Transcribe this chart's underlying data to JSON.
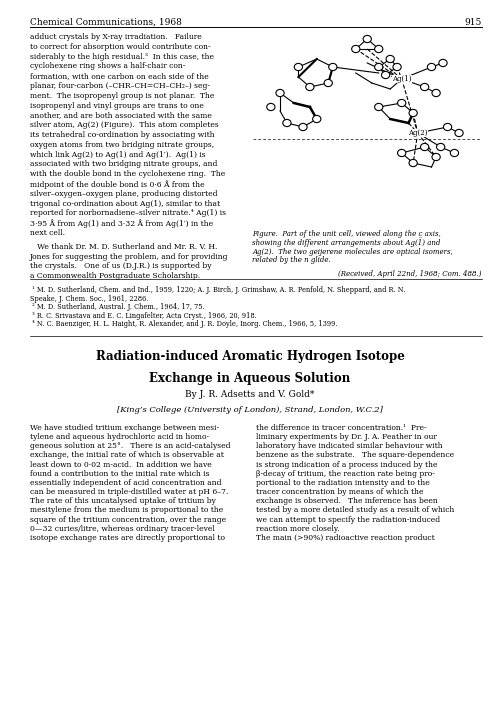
{
  "background_color": "#ffffff",
  "page_width": 5.0,
  "page_height": 7.22,
  "dpi": 100,
  "header_journal": "Chemical Communications, 1968",
  "header_page": "915",
  "top_left_text": [
    "adduct crystals by X-ray irradiation.   Failure",
    "to correct for absorption would contribute con-",
    "siderably to the high residual.³  In this case, the",
    "cyclohexene ring shows a half-chair con-",
    "formation, with one carbon on each side of the",
    "planar, four-carbon (–CHR–CH=CH–CH₂–) seg-",
    "ment.  The isopropenyl group is not planar.  The",
    "isopropenyl and vinyl groups are trans to one",
    "another, and are both associated with the same",
    "silver atom, Ag(2) (Figure).  This atom completes",
    "its tetrahedral co-ordination by associating with",
    "oxygen atoms from two bridging nitrate groups,",
    "which link Ag(2) to Ag(1) and Ag(1′).  Ag(1) is",
    "associated with two bridging nitrate groups, and",
    "with the double bond in the cyclohexene ring.  The",
    "midpoint of the double bond is 0·6 Å from the",
    "silver–oxygen–oxygen plane, producing distorted",
    "trigonal co-ordination about Ag(1), similar to that",
    "reported for norbornadiene–silver nitrate.⁴ Ag(1) is",
    "3·95 Å from Ag(1) and 3·32 Å from Ag(1′) in the",
    "next cell."
  ],
  "top_left_thanks": [
    "   We thank Dr. M. D. Sutherland and Mr. R. V. H.",
    "Jones for suggesting the problem, and for providing",
    "the crystals.   One of us (D.J.R.) is supported by",
    "a Commonwealth Postgraduate Scholarship."
  ],
  "figure_caption": [
    "Figure.  Part of the unit cell, viewed along the c̲ axis,",
    "showing the different arrangements about Ag(1) and",
    "Ag(2).  The two geijerene molecules are optical isomers,",
    "related by the n glide."
  ],
  "received_line": "(Received, April 22nd, 1968; Com. 488.)",
  "refs": [
    " ¹ M. D. Sutherland, Chem. and Ind., 1959, 1220; A. J. Birch, J. Grimshaw, A. R. Penfold, N. Sheppard, and R. N.",
    "Speake, J. Chem. Soc., 1961, 2286.",
    " ² M. D. Sutherland, Austral. J. Chem., 1964, 17, 75.",
    " ³ R. C. Srivastava and E. C. Lingafelter, Acta Cryst., 1966, 20, 918.",
    " ⁴ N. C. Baenziger, H. L. Haight, R. Alexander, and J. R. Doyle, Inorg. Chem., 1966, 5, 1399."
  ],
  "main_title_line1": "Radiation-induced Aromatic Hydrogen Isotope",
  "main_title_line2": "Exchange in Aqueous Solution",
  "authors": "By J. R. Adsetts and V. Gold*",
  "affiliation": "[King’s College (University of London), Strand, London, W.C.2]",
  "body_left": [
    "We have studied tritium exchange between mesi-",
    "tylene and aqueous hydrochloric acid in homo-",
    "geneous solution at 25°.   There is an acid-catalysed",
    "exchange, the initial rate of which is observable at",
    "least down to 0·02 m-acid.  In addition we have",
    "found a contribution to the initial rate which is",
    "essentially independent of acid concentration and",
    "can be measured in triple-distilled water at pH 6–7.",
    "The rate of this uncatalysed uptake of tritium by",
    "mesitylene from the medium is proportional to the",
    "square of the tritium concentration, over the range",
    "0—32 curies/litre, whereas ordinary tracer-level",
    "isotope exchange rates are directly proportional to"
  ],
  "body_right": [
    "the difference in tracer concentration.¹  Pre-",
    "liminary experiments by Dr. J. A. Feather in our",
    "laboratory have indicated similar behaviour with",
    "benzene as the substrate.   The square-dependence",
    "is strong indication of a process induced by the",
    "β-decay of tritium, the reaction rate being pro-",
    "portional to the radiation intensity and to the",
    "tracer concentration by means of which the",
    "exchange is observed.   The inference has been",
    "tested by a more detailed study as a result of which",
    "we can attempt to specify the radiation-induced",
    "reaction more closely.",
    "The main (>90%) radioactive reaction product"
  ]
}
